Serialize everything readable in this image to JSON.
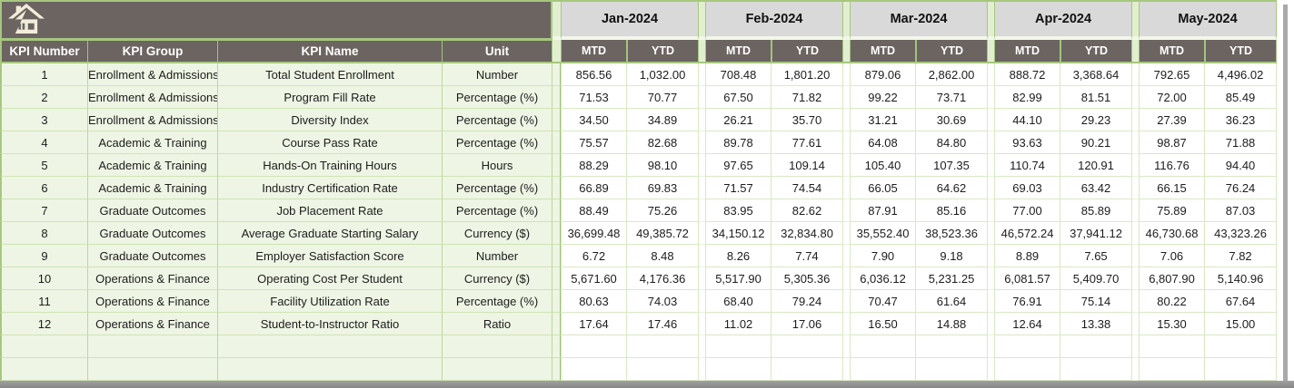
{
  "header": {
    "home_icon": "home-icon"
  },
  "table": {
    "left_headers": [
      "KPI Number",
      "KPI Group",
      "KPI Name",
      "Unit"
    ],
    "months": [
      "Jan-2024",
      "Feb-2024",
      "Mar-2024",
      "Apr-2024",
      "May-2024"
    ],
    "sub_headers": [
      "MTD",
      "YTD"
    ],
    "rows": [
      {
        "number": "1",
        "group": "Enrollment & Admissions",
        "name": "Total Student Enrollment",
        "unit": "Number",
        "values": [
          "856.56",
          "1,032.00",
          "708.48",
          "1,801.20",
          "879.06",
          "2,862.00",
          "888.72",
          "3,368.64",
          "792.65",
          "4,496.02"
        ]
      },
      {
        "number": "2",
        "group": "Enrollment & Admissions",
        "name": "Program Fill Rate",
        "unit": "Percentage (%)",
        "values": [
          "71.53",
          "70.77",
          "67.50",
          "71.82",
          "99.22",
          "73.71",
          "82.99",
          "81.51",
          "72.00",
          "85.49"
        ]
      },
      {
        "number": "3",
        "group": "Enrollment & Admissions",
        "name": "Diversity Index",
        "unit": "Percentage (%)",
        "values": [
          "34.50",
          "34.89",
          "26.21",
          "35.70",
          "31.21",
          "30.69",
          "44.10",
          "29.23",
          "27.39",
          "36.23"
        ]
      },
      {
        "number": "4",
        "group": "Academic & Training",
        "name": "Course Pass Rate",
        "unit": "Percentage (%)",
        "values": [
          "75.57",
          "82.68",
          "89.78",
          "77.61",
          "64.08",
          "84.80",
          "93.63",
          "90.21",
          "98.87",
          "71.88"
        ]
      },
      {
        "number": "5",
        "group": "Academic & Training",
        "name": "Hands-On Training Hours",
        "unit": "Hours",
        "values": [
          "88.29",
          "98.10",
          "97.65",
          "109.14",
          "105.40",
          "107.35",
          "110.74",
          "120.91",
          "116.76",
          "94.40"
        ]
      },
      {
        "number": "6",
        "group": "Academic & Training",
        "name": "Industry Certification Rate",
        "unit": "Percentage (%)",
        "values": [
          "66.89",
          "69.83",
          "71.57",
          "74.54",
          "66.05",
          "64.62",
          "69.03",
          "63.42",
          "66.15",
          "76.24"
        ]
      },
      {
        "number": "7",
        "group": "Graduate Outcomes",
        "name": "Job Placement Rate",
        "unit": "Percentage (%)",
        "values": [
          "88.49",
          "75.26",
          "83.95",
          "82.62",
          "87.91",
          "85.16",
          "77.00",
          "85.89",
          "75.89",
          "87.03"
        ]
      },
      {
        "number": "8",
        "group": "Graduate Outcomes",
        "name": "Average Graduate Starting Salary",
        "unit": "Currency ($)",
        "values": [
          "36,699.48",
          "49,385.72",
          "34,150.12",
          "32,834.80",
          "35,552.40",
          "38,523.36",
          "46,572.24",
          "37,941.12",
          "46,730.68",
          "43,323.26"
        ]
      },
      {
        "number": "9",
        "group": "Graduate Outcomes",
        "name": "Employer Satisfaction Score",
        "unit": "Number",
        "values": [
          "6.72",
          "8.48",
          "8.26",
          "7.74",
          "7.90",
          "9.18",
          "8.89",
          "7.65",
          "7.06",
          "7.82"
        ]
      },
      {
        "number": "10",
        "group": "Operations & Finance",
        "name": "Operating Cost Per Student",
        "unit": "Currency ($)",
        "values": [
          "5,671.60",
          "4,176.36",
          "5,517.90",
          "5,305.36",
          "6,036.12",
          "5,231.25",
          "6,081.57",
          "5,409.70",
          "6,807.90",
          "5,140.96"
        ]
      },
      {
        "number": "11",
        "group": "Operations & Finance",
        "name": "Facility Utilization Rate",
        "unit": "Percentage (%)",
        "values": [
          "80.63",
          "74.03",
          "68.40",
          "79.24",
          "70.47",
          "61.64",
          "76.91",
          "75.14",
          "80.22",
          "67.64"
        ]
      },
      {
        "number": "12",
        "group": "Operations & Finance",
        "name": "Student-to-Instructor Ratio",
        "unit": "Ratio",
        "values": [
          "17.64",
          "17.46",
          "11.02",
          "17.06",
          "16.50",
          "14.88",
          "12.64",
          "13.38",
          "15.30",
          "15.00"
        ]
      }
    ],
    "empty_row_count": 2
  },
  "colors": {
    "header_dark": "#6b6461",
    "month_header_gray": "#d9d9d9",
    "border_green": "#a6c77e",
    "left_cell_green": "#eef5e4",
    "gridline_green": "#d9e8c4",
    "home_icon_cream": "#f2ecda"
  }
}
